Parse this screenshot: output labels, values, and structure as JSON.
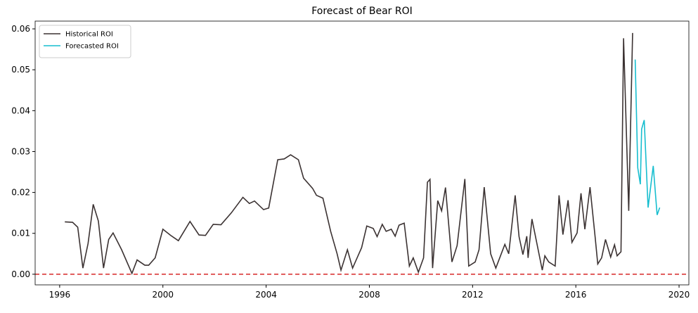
{
  "chart_data": {
    "type": "line",
    "title": "Forecast of Bear ROI",
    "xlim": [
      1995.05,
      2020.38
    ],
    "ylim": [
      -0.0026,
      0.0619
    ],
    "xticks": [
      1996,
      2000,
      2004,
      2008,
      2012,
      2016,
      2020
    ],
    "yticks": [
      {
        "value": 0,
        "label": "0.00"
      },
      {
        "value": 0.01,
        "label": "0.01"
      },
      {
        "value": 0.02,
        "label": "0.02"
      },
      {
        "value": 0.03,
        "label": "0.03"
      },
      {
        "value": 0.04,
        "label": "0.04"
      },
      {
        "value": 0.05,
        "label": "0.05"
      },
      {
        "value": 0.06,
        "label": "0.06"
      }
    ],
    "grid": false,
    "legend": "upper left",
    "hline": {
      "value": 0,
      "color": "#d62728"
    },
    "series": [
      {
        "name": "Historical ROI",
        "color": "#3b3232",
        "x": [
          1996.2,
          1996.5,
          1996.7,
          1996.9,
          1997.1,
          1997.3,
          1997.5,
          1997.7,
          1997.9,
          1998.07,
          1998.4,
          1998.8,
          1999.0,
          1999.3,
          1999.45,
          1999.7,
          2000.0,
          2000.3,
          2000.6,
          2001.05,
          2001.4,
          2001.65,
          2001.95,
          2002.25,
          2002.65,
          2003.1,
          2003.35,
          2003.55,
          2003.9,
          2004.1,
          2004.45,
          2004.7,
          2004.95,
          2005.25,
          2005.45,
          2005.8,
          2005.95,
          2006.2,
          2006.5,
          2006.75,
          2006.9,
          2007.15,
          2007.35,
          2007.7,
          2007.9,
          2008.15,
          2008.3,
          2008.5,
          2008.65,
          2008.85,
          2009.0,
          2009.15,
          2009.35,
          2009.55,
          2009.7,
          2009.9,
          2010.1,
          2010.25,
          2010.35,
          2010.45,
          2010.65,
          2010.8,
          2010.95,
          2011.2,
          2011.4,
          2011.7,
          2011.85,
          2012.1,
          2012.25,
          2012.45,
          2012.7,
          2012.9,
          2013.25,
          2013.4,
          2013.65,
          2013.8,
          2013.95,
          2014.1,
          2014.15,
          2014.3,
          2014.7,
          2014.8,
          2014.95,
          2015.2,
          2015.35,
          2015.5,
          2015.7,
          2015.85,
          2016.05,
          2016.2,
          2016.35,
          2016.55,
          2016.75,
          2016.85,
          2017.0,
          2017.15,
          2017.35,
          2017.5,
          2017.6,
          2017.75,
          2017.85,
          2018.05,
          2018.2
        ],
        "values": [
          0.0128,
          0.0127,
          0.0115,
          0.0015,
          0.0075,
          0.0171,
          0.013,
          0.0015,
          0.0085,
          0.0101,
          0.006,
          0.0002,
          0.0035,
          0.0022,
          0.0022,
          0.004,
          0.011,
          0.0095,
          0.0082,
          0.0129,
          0.0096,
          0.0095,
          0.0122,
          0.0121,
          0.015,
          0.0188,
          0.0173,
          0.0179,
          0.0158,
          0.0162,
          0.028,
          0.0282,
          0.0292,
          0.028,
          0.0235,
          0.021,
          0.0193,
          0.0186,
          0.0105,
          0.005,
          0.001,
          0.006,
          0.0015,
          0.0065,
          0.0118,
          0.0112,
          0.0092,
          0.0122,
          0.0105,
          0.011,
          0.0093,
          0.012,
          0.0125,
          0.002,
          0.004,
          0.0005,
          0.004,
          0.0225,
          0.0232,
          0.0015,
          0.018,
          0.0155,
          0.0212,
          0.003,
          0.007,
          0.0233,
          0.002,
          0.003,
          0.006,
          0.0213,
          0.005,
          0.0015,
          0.0073,
          0.005,
          0.0193,
          0.0092,
          0.0048,
          0.0093,
          0.004,
          0.0135,
          0.001,
          0.0045,
          0.003,
          0.002,
          0.0193,
          0.0097,
          0.0181,
          0.0078,
          0.0101,
          0.0198,
          0.011,
          0.0213,
          0.009,
          0.0025,
          0.004,
          0.0085,
          0.0042,
          0.0072,
          0.0045,
          0.0055,
          0.0577,
          0.0155,
          0.059
        ]
      },
      {
        "name": "Forecasted ROI",
        "color": "#17becf",
        "x": [
          2018.3,
          2018.4,
          2018.5,
          2018.55,
          2018.65,
          2018.8,
          2019.0,
          2019.15,
          2019.25
        ],
        "values": [
          0.0525,
          0.026,
          0.022,
          0.0355,
          0.0377,
          0.0163,
          0.0265,
          0.0145,
          0.0163
        ]
      }
    ]
  }
}
